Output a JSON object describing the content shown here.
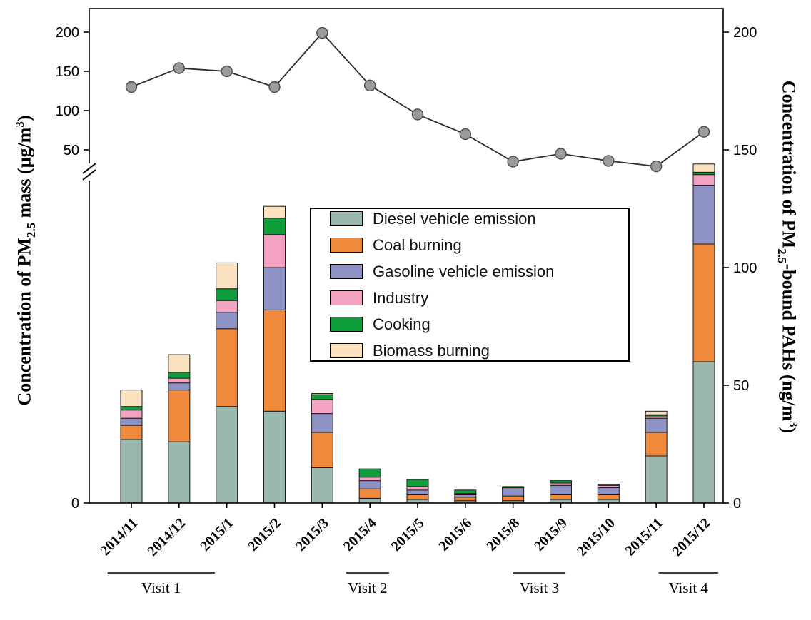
{
  "figure": {
    "left_axis_title": {
      "pre": "Concentration of PM",
      "sub": "2.5",
      "mid": " mass (μg/m",
      "sup": "3",
      "post": ")"
    },
    "right_axis_title": {
      "pre": "Concentration of PM",
      "sub": "2.5",
      "mid": "-bound PAHs (ng/m",
      "sup": "3",
      "post": ")"
    }
  },
  "chart_data": {
    "type": "bar",
    "subtype": "stacked-bars-with-line-overlay-dual-axis",
    "categories": [
      "2014/11",
      "2014/12",
      "2015/1",
      "2015/2",
      "2015/3",
      "2015/4",
      "2015/5",
      "2015/6",
      "2015/8",
      "2015/9",
      "2015/10",
      "2015/11",
      "2015/12"
    ],
    "bar_series": [
      {
        "name": "Diesel vehicle emission",
        "color": "#9bb8af",
        "values": [
          27,
          26,
          41,
          39,
          15,
          2,
          1.5,
          1,
          1,
          1.5,
          1.5,
          20,
          60
        ]
      },
      {
        "name": "Coal burning",
        "color": "#ef8a3c",
        "values": [
          6,
          22,
          33,
          43,
          15,
          4,
          2,
          1.5,
          2,
          2,
          2,
          10,
          50
        ]
      },
      {
        "name": "Gasoline vehicle emission",
        "color": "#8e92c5",
        "values": [
          3,
          3,
          7,
          18,
          8,
          3.5,
          2,
          1,
          3,
          4,
          3,
          6,
          25
        ]
      },
      {
        "name": "Industry",
        "color": "#f3a3c2",
        "values": [
          3.5,
          2,
          5,
          14,
          6,
          1.5,
          1.5,
          0.5,
          0.5,
          1,
          1,
          1,
          4.5
        ]
      },
      {
        "name": "Cooking",
        "color": "#0f9d3b",
        "values": [
          1.5,
          2.5,
          5,
          7,
          2,
          3.5,
          3,
          1.5,
          0.5,
          1,
          0.5,
          0.5,
          1
        ]
      },
      {
        "name": "Biomass burning",
        "color": "#fbe3c1",
        "values": [
          7,
          7.5,
          11,
          5,
          0.5,
          0,
          0,
          0,
          0,
          0,
          0,
          1.5,
          3.5
        ]
      }
    ],
    "bar_units": "ng/m3 (right axis)",
    "line_series": {
      "name": "PM2.5 mass",
      "units": "ug/m3 (left axis)",
      "values": [
        130,
        154,
        150,
        130,
        199,
        132,
        95,
        70,
        35,
        45,
        36,
        29,
        73
      ]
    },
    "line_style": {
      "color": "#2b2b2b",
      "marker_fill": "#9b9b9b",
      "marker_stroke": "#4a4a4a"
    },
    "left_axis": {
      "ticks": [
        "0",
        "50",
        "100",
        "150",
        "200"
      ],
      "break_between": [
        0,
        50
      ]
    },
    "right_axis": {
      "ticks": [
        "0",
        "50",
        "100",
        "150",
        "200"
      ]
    },
    "visits": [
      {
        "label": "Visit 1",
        "from": -0.5,
        "to": 1.75
      },
      {
        "label": "Visit 2",
        "from": 4.5,
        "to": 5.4
      },
      {
        "label": "Visit 3",
        "from": 8.0,
        "to": 9.1
      },
      {
        "label": "Visit 4",
        "from": 11.05,
        "to": 12.3
      }
    ],
    "legend_position": "upper-middle-inside"
  }
}
